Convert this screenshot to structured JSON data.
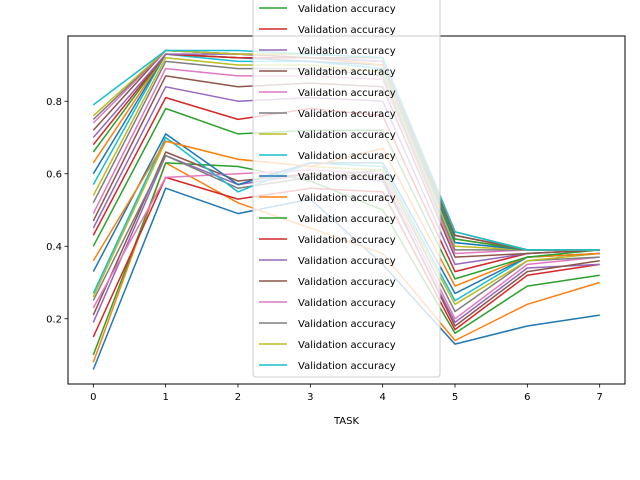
{
  "chart_data": {
    "type": "line",
    "xlabel": "TASK",
    "ylabel": "",
    "title": "",
    "x": [
      0,
      1,
      2,
      3,
      4,
      5,
      6,
      7
    ],
    "xlim": [
      -0.35,
      7.35
    ],
    "ylim": [
      0.02,
      0.98
    ],
    "yticks": [
      0.2,
      0.4,
      0.6,
      0.8
    ],
    "grid": false,
    "legend_position": "top-center",
    "series": [
      {
        "name": "Validation accuracy",
        "color": "#1f77b4",
        "values": [
          0.06,
          0.56,
          0.49,
          0.53,
          0.35,
          0.13,
          0.18,
          0.21
        ]
      },
      {
        "name": "Validation accuracy",
        "color": "#ff7f0e",
        "values": [
          0.08,
          0.63,
          0.52,
          0.45,
          0.38,
          0.14,
          0.24,
          0.3
        ]
      },
      {
        "name": "Validation accuracy",
        "color": "#2ca02c",
        "values": [
          0.1,
          0.63,
          0.62,
          0.58,
          0.5,
          0.16,
          0.29,
          0.32
        ]
      },
      {
        "name": "Validation accuracy",
        "color": "#d62728",
        "values": [
          0.15,
          0.59,
          0.53,
          0.56,
          0.55,
          0.17,
          0.32,
          0.35
        ]
      },
      {
        "name": "Validation accuracy",
        "color": "#9467bd",
        "values": [
          0.19,
          0.65,
          0.57,
          0.6,
          0.58,
          0.19,
          0.34,
          0.35
        ]
      },
      {
        "name": "Validation accuracy",
        "color": "#8c564b",
        "values": [
          0.21,
          0.66,
          0.58,
          0.6,
          0.59,
          0.18,
          0.33,
          0.36
        ]
      },
      {
        "name": "Validation accuracy",
        "color": "#e377c2",
        "values": [
          0.23,
          0.59,
          0.6,
          0.61,
          0.6,
          0.2,
          0.35,
          0.37
        ]
      },
      {
        "name": "Validation accuracy",
        "color": "#7f7f7f",
        "values": [
          0.25,
          0.65,
          0.56,
          0.59,
          0.61,
          0.22,
          0.36,
          0.37
        ]
      },
      {
        "name": "Validation accuracy",
        "color": "#bcbd22",
        "values": [
          0.26,
          0.69,
          0.64,
          0.62,
          0.61,
          0.24,
          0.36,
          0.38
        ]
      },
      {
        "name": "Validation accuracy",
        "color": "#17becf",
        "values": [
          0.27,
          0.7,
          0.55,
          0.63,
          0.62,
          0.25,
          0.37,
          0.38
        ]
      },
      {
        "name": "Validation accuracy",
        "color": "#1f77b4",
        "values": [
          0.33,
          0.71,
          0.57,
          0.63,
          0.63,
          0.27,
          0.37,
          0.38
        ]
      },
      {
        "name": "Validation accuracy",
        "color": "#ff7f0e",
        "values": [
          0.36,
          0.69,
          0.64,
          0.62,
          0.67,
          0.29,
          0.37,
          0.38
        ]
      },
      {
        "name": "Validation accuracy",
        "color": "#2ca02c",
        "values": [
          0.4,
          0.78,
          0.71,
          0.72,
          0.72,
          0.31,
          0.37,
          0.39
        ]
      },
      {
        "name": "Validation accuracy",
        "color": "#d62728",
        "values": [
          0.43,
          0.81,
          0.75,
          0.78,
          0.76,
          0.33,
          0.38,
          0.39
        ]
      },
      {
        "name": "Validation accuracy",
        "color": "#9467bd",
        "values": [
          0.45,
          0.84,
          0.8,
          0.81,
          0.8,
          0.35,
          0.38,
          0.39
        ]
      },
      {
        "name": "Validation accuracy",
        "color": "#8c564b",
        "values": [
          0.47,
          0.87,
          0.84,
          0.85,
          0.84,
          0.37,
          0.38,
          0.39
        ]
      },
      {
        "name": "Validation accuracy",
        "color": "#e377c2",
        "values": [
          0.49,
          0.89,
          0.87,
          0.87,
          0.86,
          0.38,
          0.39,
          0.39
        ]
      },
      {
        "name": "Validation accuracy",
        "color": "#7f7f7f",
        "values": [
          0.52,
          0.91,
          0.89,
          0.89,
          0.87,
          0.39,
          0.39,
          0.39
        ]
      },
      {
        "name": "Validation accuracy",
        "color": "#bcbd22",
        "values": [
          0.54,
          0.92,
          0.9,
          0.9,
          0.88,
          0.4,
          0.39,
          0.39
        ]
      },
      {
        "name": "Validation accuracy",
        "color": "#17becf",
        "values": [
          0.57,
          0.93,
          0.91,
          0.91,
          0.89,
          0.41,
          0.39,
          0.39
        ]
      },
      {
        "name": "Validation accuracy",
        "color": "#1f77b4",
        "values": [
          0.6,
          0.93,
          0.92,
          0.91,
          0.9,
          0.41,
          0.39,
          0.39
        ]
      },
      {
        "name": "Validation accuracy",
        "color": "#ff7f0e",
        "values": [
          0.63,
          0.93,
          0.92,
          0.92,
          0.9,
          0.42,
          0.39,
          0.39
        ]
      },
      {
        "name": "Validation accuracy",
        "color": "#2ca02c",
        "values": [
          0.66,
          0.93,
          0.92,
          0.92,
          0.91,
          0.42,
          0.39,
          0.39
        ]
      },
      {
        "name": "Validation accuracy",
        "color": "#d62728",
        "values": [
          0.68,
          0.93,
          0.92,
          0.92,
          0.91,
          0.43,
          0.39,
          0.39
        ]
      },
      {
        "name": "Validation accuracy",
        "color": "#9467bd",
        "values": [
          0.7,
          0.93,
          0.93,
          0.92,
          0.91,
          0.43,
          0.39,
          0.39
        ]
      },
      {
        "name": "Validation accuracy",
        "color": "#8c564b",
        "values": [
          0.72,
          0.94,
          0.93,
          0.92,
          0.92,
          0.43,
          0.39,
          0.39
        ]
      },
      {
        "name": "Validation accuracy",
        "color": "#e377c2",
        "values": [
          0.74,
          0.94,
          0.93,
          0.93,
          0.92,
          0.44,
          0.39,
          0.39
        ]
      },
      {
        "name": "Validation accuracy",
        "color": "#7f7f7f",
        "values": [
          0.75,
          0.94,
          0.93,
          0.93,
          0.92,
          0.44,
          0.39,
          0.39
        ]
      },
      {
        "name": "Validation accuracy",
        "color": "#bcbd22",
        "values": [
          0.76,
          0.94,
          0.93,
          0.93,
          0.92,
          0.44,
          0.39,
          0.39
        ]
      },
      {
        "name": "Validation accuracy",
        "color": "#17becf",
        "values": [
          0.79,
          0.94,
          0.94,
          0.93,
          0.92,
          0.44,
          0.39,
          0.39
        ]
      }
    ],
    "legend_entries": [
      {
        "label": "Validation accuracy",
        "color": "#2ca02c"
      },
      {
        "label": "Validation accuracy",
        "color": "#d62728"
      },
      {
        "label": "Validation accuracy",
        "color": "#9467bd"
      },
      {
        "label": "Validation accuracy",
        "color": "#8c564b"
      },
      {
        "label": "Validation accuracy",
        "color": "#e377c2"
      },
      {
        "label": "Validation accuracy",
        "color": "#7f7f7f"
      },
      {
        "label": "Validation accuracy",
        "color": "#bcbd22"
      },
      {
        "label": "Validation accuracy",
        "color": "#17becf"
      },
      {
        "label": "Validation accuracy",
        "color": "#1f77b4"
      },
      {
        "label": "Validation accuracy",
        "color": "#ff7f0e"
      },
      {
        "label": "Validation accuracy",
        "color": "#2ca02c"
      },
      {
        "label": "Validation accuracy",
        "color": "#d62728"
      },
      {
        "label": "Validation accuracy",
        "color": "#9467bd"
      },
      {
        "label": "Validation accuracy",
        "color": "#8c564b"
      },
      {
        "label": "Validation accuracy",
        "color": "#e377c2"
      },
      {
        "label": "Validation accuracy",
        "color": "#7f7f7f"
      },
      {
        "label": "Validation accuracy",
        "color": "#bcbd22"
      },
      {
        "label": "Validation accuracy",
        "color": "#17becf"
      }
    ]
  }
}
